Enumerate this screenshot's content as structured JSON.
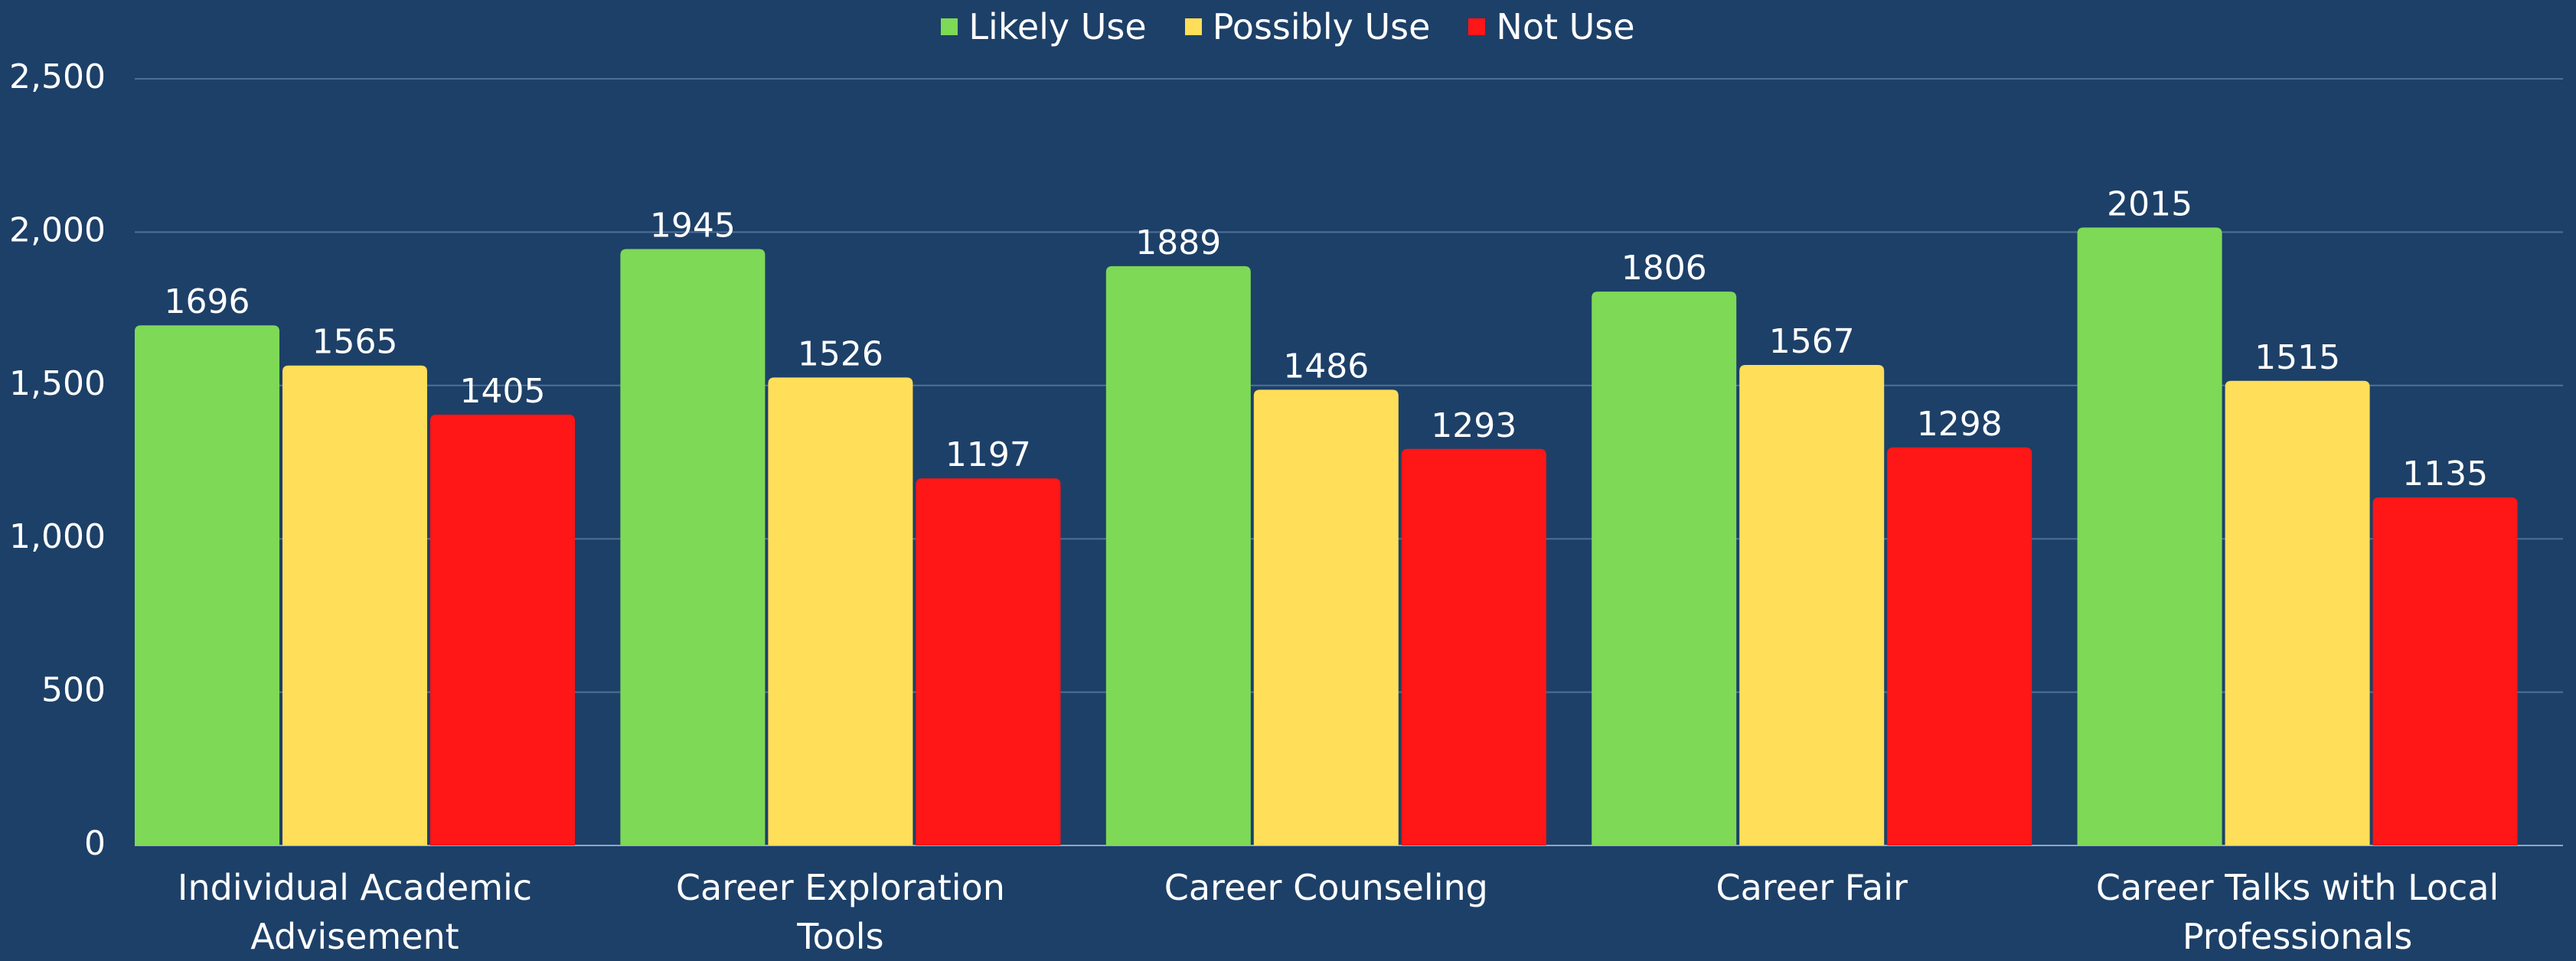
{
  "chart_data": {
    "type": "bar",
    "categories": [
      "Individual Academic Advisement",
      "Career Exploration Tools",
      "Career Counseling",
      "Career Fair",
      "Career Talks with Local Professionals"
    ],
    "series": [
      {
        "name": "Likely Use",
        "color": "#7ed957",
        "values": [
          1696,
          1945,
          1889,
          1806,
          2015
        ]
      },
      {
        "name": "Possibly Use",
        "color": "#ffde59",
        "values": [
          1565,
          1526,
          1486,
          1567,
          1515
        ]
      },
      {
        "name": "Not Use",
        "color": "#ff1616",
        "values": [
          1405,
          1197,
          1293,
          1298,
          1135
        ]
      }
    ],
    "ylim": [
      0,
      2500
    ],
    "yticks": [
      0,
      500,
      {
        "value": 1000,
        "label": "1,000"
      },
      {
        "value": 1500,
        "label": "1,500"
      },
      {
        "value": 2000,
        "label": "2,000"
      },
      {
        "value": 2500,
        "label": "2,500"
      }
    ],
    "grid": true,
    "legend": "top"
  }
}
